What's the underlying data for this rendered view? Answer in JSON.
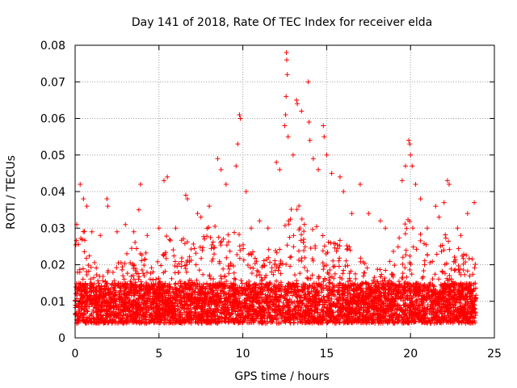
{
  "chart_data": {
    "type": "scatter",
    "title": "Day 141 of 2018, Rate Of TEC Index for receiver elda",
    "xlabel": "GPS time / hours",
    "ylabel": "ROTI / TECUs",
    "xlim": [
      0,
      25
    ],
    "ylim": [
      0,
      0.08
    ],
    "xticks": [
      0,
      5,
      10,
      15,
      20,
      25
    ],
    "yticks": [
      0,
      0.01,
      0.02,
      0.03,
      0.04,
      0.05,
      0.06,
      0.07,
      0.08
    ],
    "xtick_labels": [
      "0",
      "5",
      "10",
      "15",
      "20",
      "25"
    ],
    "ytick_labels": [
      "0",
      "0.01",
      "0.02",
      "0.03",
      "0.04",
      "0.05",
      "0.06",
      "0.07",
      "0.08"
    ],
    "grid": true,
    "marker": "+",
    "color": "#ff0000",
    "data_range_x": [
      0,
      23.9
    ],
    "baseline_band": [
      0.004,
      0.015
    ],
    "activity_profile": [
      [
        0.0,
        0.028
      ],
      [
        0.5,
        0.03
      ],
      [
        1.0,
        0.022
      ],
      [
        1.5,
        0.018
      ],
      [
        2.0,
        0.02
      ],
      [
        2.5,
        0.02
      ],
      [
        3.0,
        0.025
      ],
      [
        3.5,
        0.026
      ],
      [
        4.0,
        0.028
      ],
      [
        4.5,
        0.02
      ],
      [
        5.0,
        0.022
      ],
      [
        5.5,
        0.03
      ],
      [
        6.0,
        0.022
      ],
      [
        6.5,
        0.03
      ],
      [
        7.0,
        0.026
      ],
      [
        7.5,
        0.028
      ],
      [
        8.0,
        0.032
      ],
      [
        8.5,
        0.03
      ],
      [
        9.0,
        0.028
      ],
      [
        9.5,
        0.036
      ],
      [
        10.0,
        0.03
      ],
      [
        10.5,
        0.024
      ],
      [
        11.0,
        0.022
      ],
      [
        11.5,
        0.024
      ],
      [
        12.0,
        0.026
      ],
      [
        12.5,
        0.034
      ],
      [
        13.0,
        0.038
      ],
      [
        13.5,
        0.036
      ],
      [
        14.0,
        0.034
      ],
      [
        14.5,
        0.03
      ],
      [
        15.0,
        0.028
      ],
      [
        15.5,
        0.026
      ],
      [
        16.0,
        0.028
      ],
      [
        16.5,
        0.024
      ],
      [
        17.0,
        0.022
      ],
      [
        17.5,
        0.02
      ],
      [
        18.0,
        0.02
      ],
      [
        18.5,
        0.02
      ],
      [
        19.0,
        0.024
      ],
      [
        19.5,
        0.03
      ],
      [
        20.0,
        0.034
      ],
      [
        20.5,
        0.03
      ],
      [
        21.0,
        0.026
      ],
      [
        21.5,
        0.024
      ],
      [
        22.0,
        0.03
      ],
      [
        22.5,
        0.026
      ],
      [
        23.0,
        0.024
      ],
      [
        23.5,
        0.022
      ],
      [
        23.9,
        0.022
      ]
    ],
    "spikes": [
      {
        "x": 0.1,
        "y": 0.031
      },
      {
        "x": 0.3,
        "y": 0.042
      },
      {
        "x": 0.5,
        "y": 0.038
      },
      {
        "x": 0.7,
        "y": 0.036
      },
      {
        "x": 1.0,
        "y": 0.029
      },
      {
        "x": 1.5,
        "y": 0.028
      },
      {
        "x": 1.9,
        "y": 0.038
      },
      {
        "x": 1.95,
        "y": 0.036
      },
      {
        "x": 2.5,
        "y": 0.029
      },
      {
        "x": 3.0,
        "y": 0.031
      },
      {
        "x": 3.5,
        "y": 0.029
      },
      {
        "x": 3.8,
        "y": 0.035
      },
      {
        "x": 3.9,
        "y": 0.042
      },
      {
        "x": 4.3,
        "y": 0.028
      },
      {
        "x": 5.0,
        "y": 0.03
      },
      {
        "x": 5.3,
        "y": 0.043
      },
      {
        "x": 5.5,
        "y": 0.044
      },
      {
        "x": 6.0,
        "y": 0.03
      },
      {
        "x": 6.6,
        "y": 0.039
      },
      {
        "x": 6.7,
        "y": 0.038
      },
      {
        "x": 7.3,
        "y": 0.034
      },
      {
        "x": 7.5,
        "y": 0.033
      },
      {
        "x": 8.0,
        "y": 0.036
      },
      {
        "x": 8.5,
        "y": 0.049
      },
      {
        "x": 8.7,
        "y": 0.046
      },
      {
        "x": 9.0,
        "y": 0.042
      },
      {
        "x": 9.6,
        "y": 0.047
      },
      {
        "x": 9.7,
        "y": 0.053
      },
      {
        "x": 9.8,
        "y": 0.061
      },
      {
        "x": 9.85,
        "y": 0.06
      },
      {
        "x": 10.2,
        "y": 0.04
      },
      {
        "x": 10.5,
        "y": 0.03
      },
      {
        "x": 11.0,
        "y": 0.032
      },
      {
        "x": 11.5,
        "y": 0.03
      },
      {
        "x": 12.0,
        "y": 0.048
      },
      {
        "x": 12.2,
        "y": 0.046
      },
      {
        "x": 12.5,
        "y": 0.058
      },
      {
        "x": 12.6,
        "y": 0.078
      },
      {
        "x": 12.62,
        "y": 0.076
      },
      {
        "x": 12.65,
        "y": 0.072
      },
      {
        "x": 12.58,
        "y": 0.066
      },
      {
        "x": 12.55,
        "y": 0.061
      },
      {
        "x": 12.7,
        "y": 0.055
      },
      {
        "x": 13.0,
        "y": 0.05
      },
      {
        "x": 13.2,
        "y": 0.065
      },
      {
        "x": 13.25,
        "y": 0.064
      },
      {
        "x": 13.5,
        "y": 0.062
      },
      {
        "x": 13.9,
        "y": 0.07
      },
      {
        "x": 13.95,
        "y": 0.059
      },
      {
        "x": 14.0,
        "y": 0.054
      },
      {
        "x": 14.2,
        "y": 0.049
      },
      {
        "x": 14.5,
        "y": 0.046
      },
      {
        "x": 14.8,
        "y": 0.058
      },
      {
        "x": 14.85,
        "y": 0.055
      },
      {
        "x": 15.0,
        "y": 0.05
      },
      {
        "x": 15.3,
        "y": 0.045
      },
      {
        "x": 15.8,
        "y": 0.044
      },
      {
        "x": 16.0,
        "y": 0.04
      },
      {
        "x": 16.5,
        "y": 0.034
      },
      {
        "x": 17.0,
        "y": 0.042
      },
      {
        "x": 17.5,
        "y": 0.034
      },
      {
        "x": 18.2,
        "y": 0.032
      },
      {
        "x": 18.5,
        "y": 0.03
      },
      {
        "x": 19.5,
        "y": 0.043
      },
      {
        "x": 19.7,
        "y": 0.047
      },
      {
        "x": 19.9,
        "y": 0.054
      },
      {
        "x": 19.95,
        "y": 0.053
      },
      {
        "x": 20.0,
        "y": 0.05
      },
      {
        "x": 20.1,
        "y": 0.047
      },
      {
        "x": 20.3,
        "y": 0.042
      },
      {
        "x": 20.6,
        "y": 0.038
      },
      {
        "x": 21.0,
        "y": 0.03
      },
      {
        "x": 21.5,
        "y": 0.036
      },
      {
        "x": 21.7,
        "y": 0.033
      },
      {
        "x": 22.0,
        "y": 0.037
      },
      {
        "x": 22.2,
        "y": 0.043
      },
      {
        "x": 22.3,
        "y": 0.042
      },
      {
        "x": 22.8,
        "y": 0.03
      },
      {
        "x": 23.0,
        "y": 0.028
      },
      {
        "x": 23.4,
        "y": 0.034
      },
      {
        "x": 23.8,
        "y": 0.037
      }
    ]
  }
}
